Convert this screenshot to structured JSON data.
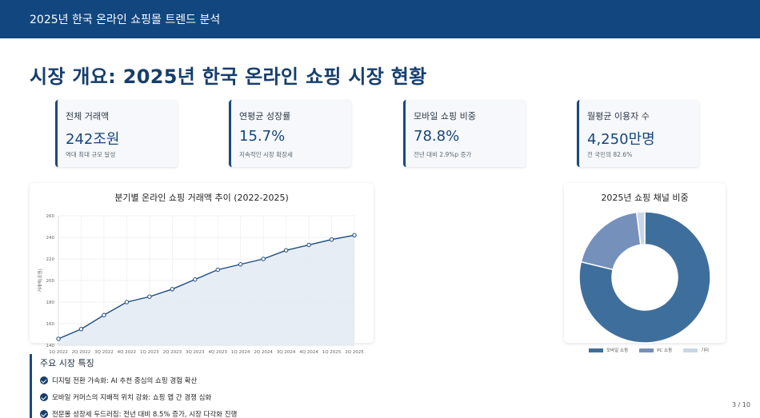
{
  "header": {
    "title": "2025년 한국 온라인 쇼핑몰 트렌드 분석"
  },
  "page": {
    "title": "시장 개요: 2025년 한국 온라인 쇼핑 시장 현황",
    "number": "3 / 10"
  },
  "kpis": [
    {
      "label": "전체 거래액",
      "value": "242조원",
      "note": "역대 최대 규모 달성"
    },
    {
      "label": "연평균 성장률",
      "value": "15.7%",
      "note": "지속적인 시장 확장세"
    },
    {
      "label": "모바일 쇼핑 비중",
      "value": "78.8%",
      "note": "전년 대비 2.9%p 증가"
    },
    {
      "label": "월평균 이용자 수",
      "value": "4,250만명",
      "note": "전 국민의 82.6%"
    }
  ],
  "features": {
    "title": "주요 시장 특징",
    "items": [
      "디지털 전환 가속화: AI 추천 중심의 쇼핑 경험 확산",
      "모바일 커머스의 지배적 위치 강화: 쇼핑 앱 간 경쟁 심화",
      "전문몰 성장세 두드러짐: 전년 대비 8.5% 증가, 시장 다각화 진행"
    ]
  },
  "colors": {
    "brand": "#12467e",
    "line": "#1a4a80",
    "fill": "#e4ebf3"
  },
  "chart_data": [
    {
      "type": "area",
      "title": "분기별 온라인 쇼핑 거래액 추이 (2022-2025)",
      "ylabel": "거래액(조원)",
      "xlabel": "",
      "categories": [
        "1Q 2022",
        "2Q 2022",
        "3Q 2022",
        "4Q 2022",
        "1Q 2023",
        "2Q 2023",
        "3Q 2023",
        "4Q 2023",
        "1Q 2024",
        "2Q 2024",
        "3Q 2024",
        "4Q 2024",
        "1Q 2025",
        "2Q 2025"
      ],
      "values": [
        146,
        155,
        168,
        180,
        185,
        192,
        201,
        210,
        215,
        220,
        228,
        233,
        238,
        242
      ],
      "ylim": [
        140,
        260
      ],
      "yticks": [
        "140",
        "160",
        "180",
        "200",
        "220",
        "240",
        "260"
      ],
      "grid": true
    },
    {
      "type": "pie",
      "title": "2025년 쇼핑 채널 비중",
      "labels": [
        "모바일 쇼핑",
        "PC 쇼핑",
        "기타"
      ],
      "values": [
        78.8,
        19.2,
        2.0
      ],
      "colors": [
        "#3e6f9c",
        "#7690bc",
        "#c9d6e8"
      ],
      "legend": "bottom"
    }
  ]
}
